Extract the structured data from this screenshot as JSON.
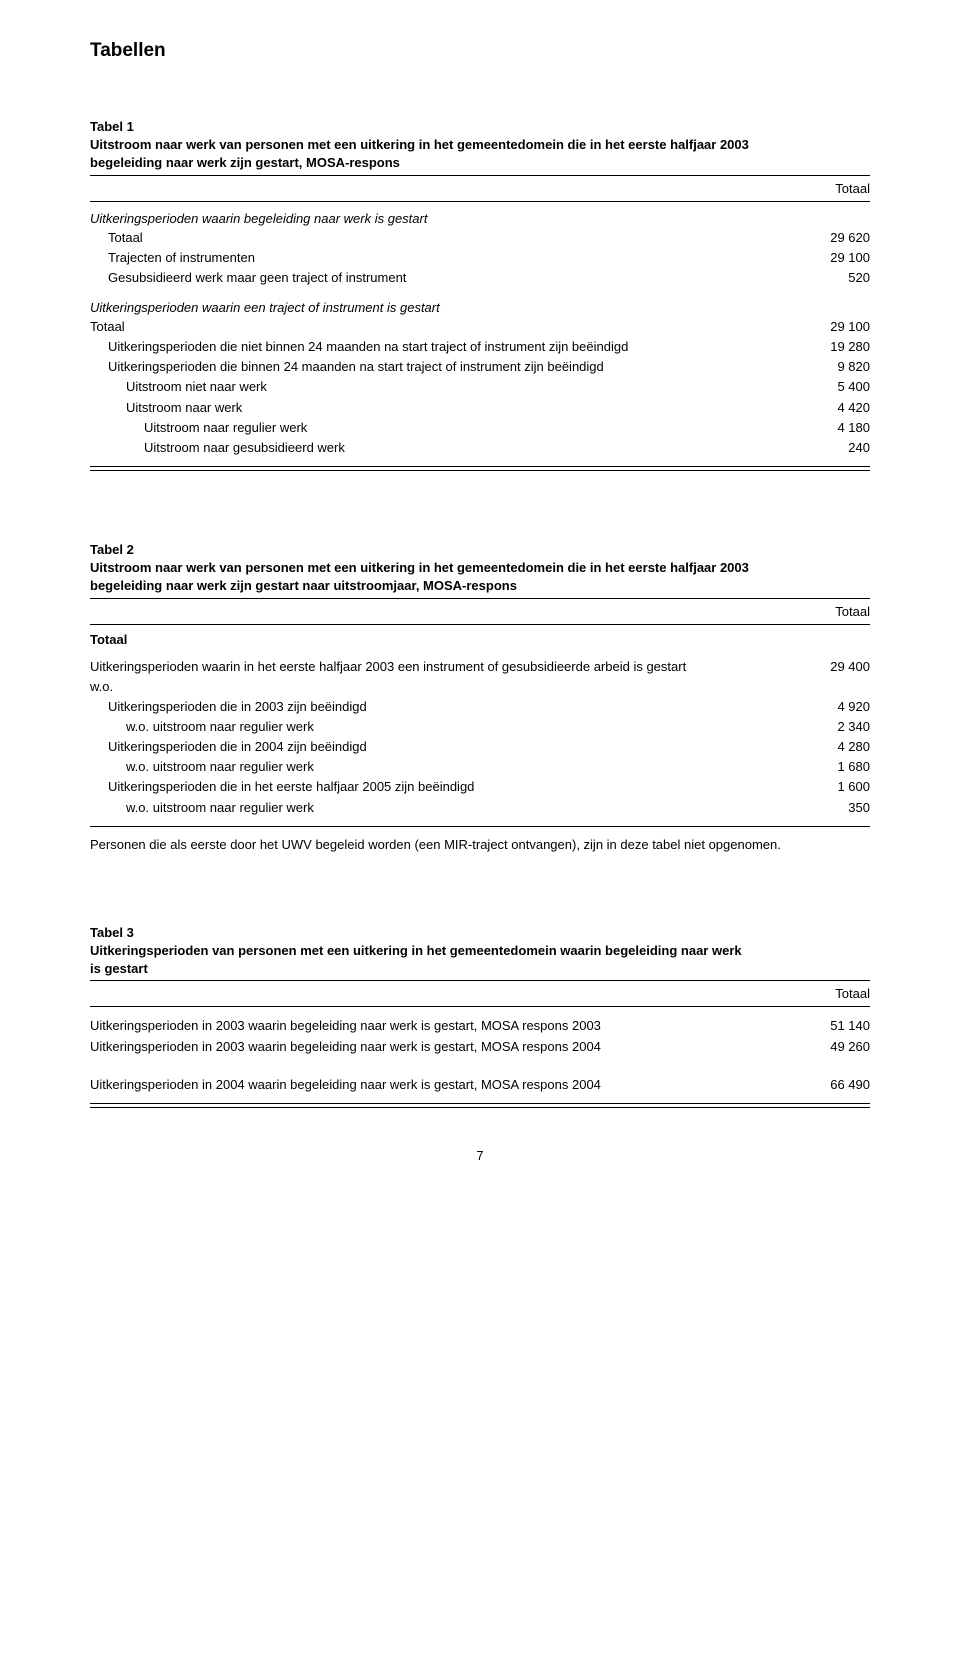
{
  "page": {
    "title": "Tabellen",
    "number": "7"
  },
  "table1": {
    "label": "Tabel 1",
    "title_line1": "Uitstroom naar werk van personen met een uitkering in het gemeentedomein die in het eerste halfjaar 2003",
    "title_line2": " begeleiding naar werk zijn gestart, MOSA-respons",
    "totaal_header": "Totaal",
    "section1": {
      "heading": "Uitkeringsperioden waarin begeleiding naar werk is gestart",
      "rows": [
        {
          "label": "Totaal",
          "value": "29 620",
          "indent": 1
        },
        {
          "label": "Trajecten of instrumenten",
          "value": "29 100",
          "indent": 1
        },
        {
          "label": "Gesubsidieerd werk maar geen traject of instrument",
          "value": "520",
          "indent": 1
        }
      ]
    },
    "section2": {
      "heading": "Uitkeringsperioden waarin een traject of instrument is gestart",
      "rows": [
        {
          "label": "Totaal",
          "value": "29 100",
          "indent": 0
        },
        {
          "label": "Uitkeringsperioden die niet binnen 24 maanden na start traject of instrument zijn beëindigd",
          "value": "19 280",
          "indent": 1
        },
        {
          "label": "Uitkeringsperioden die binnen 24 maanden na start traject of instrument zijn beëindigd",
          "value": "9 820",
          "indent": 1
        },
        {
          "label": "Uitstroom niet naar werk",
          "value": "5 400",
          "indent": 2
        },
        {
          "label": "Uitstroom naar werk",
          "value": "4 420",
          "indent": 2
        },
        {
          "label": "Uitstroom naar regulier werk",
          "value": "4 180",
          "indent": 3
        },
        {
          "label": "Uitstroom naar gesubsidieerd werk",
          "value": "240",
          "indent": 3
        }
      ]
    }
  },
  "table2": {
    "label": "Tabel 2",
    "title_line1": "Uitstroom naar werk van personen met een uitkering in het gemeentedomein die in het eerste halfjaar 2003",
    "title_line2": " begeleiding naar werk zijn gestart naar uitstroomjaar, MOSA-respons",
    "totaal_header": "Totaal",
    "totaal_left": "Totaal",
    "rows": [
      {
        "label": "Uitkeringsperioden waarin in het eerste halfjaar 2003 een instrument of gesubsidieerde arbeid is gestart",
        "value": "29 400",
        "indent": 0
      },
      {
        "label": "w.o.",
        "value": "",
        "indent": 0
      },
      {
        "label": "Uitkeringsperioden die in 2003 zijn beëindigd",
        "value": "4 920",
        "indent": 1
      },
      {
        "label": "w.o. uitstroom naar regulier werk",
        "value": "2 340",
        "indent": 2
      },
      {
        "label": "Uitkeringsperioden die in 2004 zijn beëindigd",
        "value": "4 280",
        "indent": 1
      },
      {
        "label": "w.o. uitstroom naar regulier werk",
        "value": "1 680",
        "indent": 2
      },
      {
        "label": "Uitkeringsperioden die in het eerste halfjaar 2005 zijn beëindigd",
        "value": "1 600",
        "indent": 1
      },
      {
        "label": "w.o. uitstroom naar regulier werk",
        "value": "350",
        "indent": 2
      }
    ],
    "note": "Personen die als eerste door het UWV begeleid worden (een MIR-traject ontvangen), zijn in deze tabel niet opgenomen."
  },
  "table3": {
    "label": "Tabel 3",
    "title_line1": "Uitkeringsperioden van personen met een uitkering in het gemeentedomein waarin begeleiding naar werk",
    "title_line2": " is gestart",
    "totaal_header": "Totaal",
    "rows_group1": [
      {
        "label": "Uitkeringsperioden in 2003 waarin begeleiding naar werk is gestart, MOSA respons 2003",
        "value": "51 140",
        "indent": 0
      },
      {
        "label": "Uitkeringsperioden in 2003 waarin begeleiding naar werk is gestart, MOSA respons 2004",
        "value": "49 260",
        "indent": 0
      }
    ],
    "rows_group2": [
      {
        "label": "Uitkeringsperioden in 2004 waarin begeleiding naar werk is gestart, MOSA respons 2004",
        "value": "66 490",
        "indent": 0
      }
    ]
  }
}
